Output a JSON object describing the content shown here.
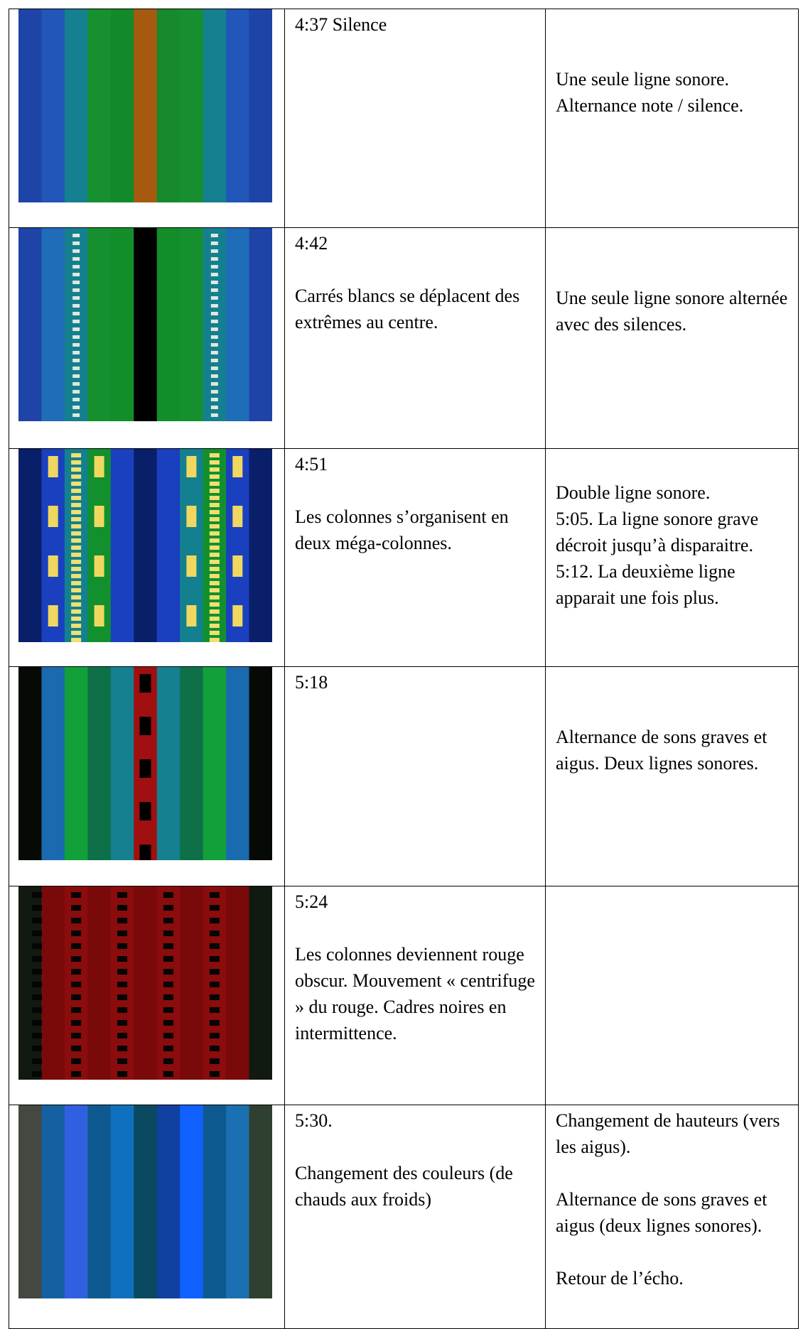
{
  "table": {
    "rows": [
      {
        "time": "4:37 Silence",
        "notes": [
          "Une seule ligne sonore. Alternance note / silence."
        ]
      },
      {
        "time": "4:42",
        "description": "Carrés blancs se déplacent des extrêmes au centre.",
        "notes": [
          "Une seule ligne sonore alternée avec des silences."
        ]
      },
      {
        "time": "4:51",
        "description": "Les colonnes s’organisent en deux méga-colonnes.",
        "notes": [
          "Double ligne sonore.",
          "5:05. La ligne sonore grave décroit jusqu’à disparaitre.",
          "5:12. La deuxième ligne apparait une fois plus."
        ]
      },
      {
        "time": "5:18",
        "notes": [
          "Alternance de sons graves et aigus. Deux lignes sonores."
        ]
      },
      {
        "time": "5:24",
        "description": "Les colonnes deviennent rouge obscur. Mouvement « centrifuge » du rouge. Cadres noires en intermittence."
      },
      {
        "time": "5:30.",
        "description": "Changement des couleurs (de chauds aux froids)",
        "notes": [
          "Changement de hauteurs (vers les aigus).",
          "Alternance de sons graves et aigus (deux lignes sonores).",
          "Retour de l’écho."
        ]
      }
    ]
  }
}
